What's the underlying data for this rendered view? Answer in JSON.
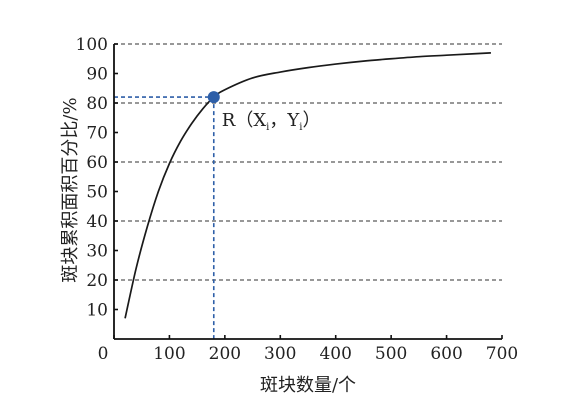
{
  "chart_data": {
    "type": "line",
    "xlabel": "斑块数量/个",
    "ylabel": "斑块累积面积百分比/%",
    "xlim": [
      0,
      700
    ],
    "ylim": [
      0,
      100
    ],
    "x_ticks": [
      "0",
      "100",
      "200",
      "300",
      "400",
      "500",
      "600",
      "700"
    ],
    "y_ticks": [
      "10",
      "20",
      "30",
      "40",
      "50",
      "60",
      "70",
      "80",
      "90",
      "100"
    ],
    "grid": "horizontal dashed at 20, 40, 60, 80, 100",
    "series": [
      {
        "x": [
          20,
          40,
          60,
          80,
          100,
          120,
          140,
          160,
          180,
          200,
          250,
          300,
          350,
          400,
          450,
          500,
          550,
          600,
          650,
          680
        ],
        "y": [
          7,
          24,
          38,
          50,
          59.5,
          67,
          73,
          78,
          82,
          84.5,
          88.5,
          90.5,
          92,
          93.2,
          94.2,
          95,
          95.7,
          96.2,
          96.7,
          97
        ]
      }
    ],
    "highlight_point": {
      "label": "R（X",
      "sub_x": "i",
      "mid": "，Y",
      "sub_y": "i",
      "tail": "）",
      "x": 180,
      "y": 82
    },
    "colors": {
      "line": "#1a1a1a",
      "point": "#2e5fa8",
      "guide": "#2e5fa8",
      "grid": "#777777"
    }
  }
}
